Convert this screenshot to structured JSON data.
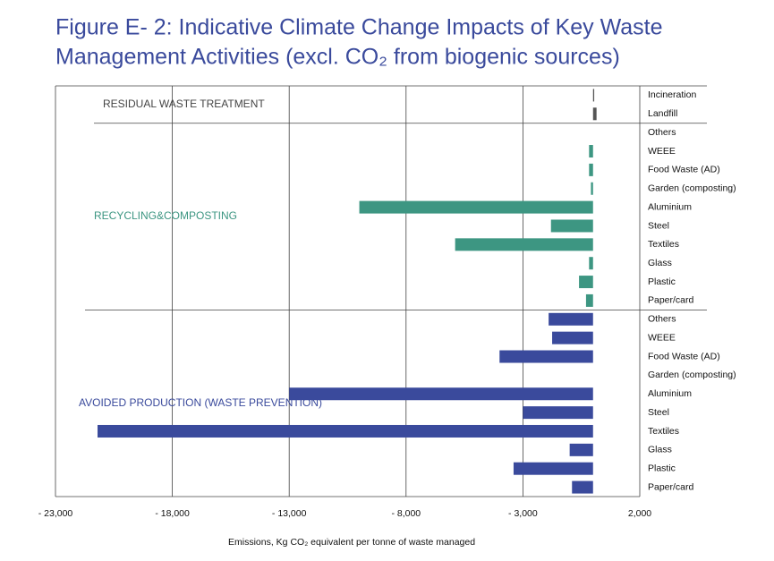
{
  "chart_data": {
    "type": "grouped-hbar",
    "title": [
      "Figure E- 2: Indicative Climate Change Impacts of Key Waste",
      "Management Activities (excl. CO₂ from biogenic sources)"
    ],
    "x_label": "Emissions, Kg CO₂ equivalent per tonne of waste managed",
    "xlim": [
      -23000,
      2000
    ],
    "xticks": [
      {
        "value": -23000,
        "label": "- 23,000"
      },
      {
        "value": -18000,
        "label": "- 18,000"
      },
      {
        "value": -13000,
        "label": "- 13,000"
      },
      {
        "value": -8000,
        "label": "- 8,000"
      },
      {
        "value": -3000,
        "label": "- 3,000"
      },
      {
        "value": 2000,
        "label": "2,000"
      }
    ],
    "grid": true,
    "groups": [
      {
        "name": "RESIDUAL WASTE TREATMENT",
        "color": "#555555",
        "categories": [
          "Incineration",
          "Landfill"
        ],
        "values": [
          50,
          150
        ]
      },
      {
        "name": "RECYCLING&COMPOSTING",
        "color": "#3d9682",
        "categories": [
          "Others",
          "WEEE",
          "Food Waste (AD)",
          "Garden (composting)",
          "Aluminium",
          "Steel",
          "Textiles",
          "Glass",
          "Plastic",
          "Paper/card"
        ],
        "values": [
          0,
          -170,
          -170,
          -90,
          -10000,
          -1800,
          -5900,
          -170,
          -600,
          -300
        ]
      },
      {
        "name": "AVOIDED PRODUCTION (WASTE PREVENTION)",
        "color": "#3a4a9c",
        "categories": [
          "Others",
          "WEEE",
          "Food Waste (AD)",
          "Garden (composting)",
          "Aluminium",
          "Steel",
          "Textiles",
          "Glass",
          "Plastic",
          "Paper/card"
        ],
        "values": [
          -1900,
          -1750,
          -4000,
          0,
          -13000,
          -3000,
          -21200,
          -1000,
          -3400,
          -900
        ]
      }
    ]
  }
}
